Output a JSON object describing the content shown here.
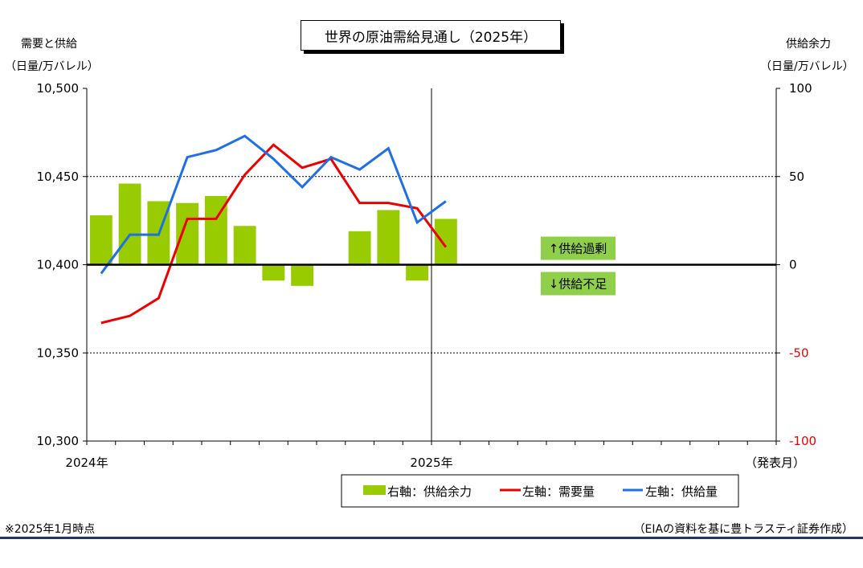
{
  "title": "世界の原油需給見通し（2025年）",
  "left_axis_caption": [
    "需要と供給",
    "（日量/万バレル）"
  ],
  "right_axis_caption": [
    "供給余力",
    "（日量/万バレル）"
  ],
  "footnote": "※2025年1月時点",
  "source": "（EIAの資料を基に豊トラスティ証券作成）",
  "colors": {
    "bar": "#99cc00",
    "demand": "#ee0000",
    "supply": "#1f6fe5",
    "callout": "#8fcf4a"
  },
  "chart_data": {
    "type": "bar+line",
    "x_tick_labels": [
      {
        "index": 1,
        "label": "2024年"
      },
      {
        "index": 13,
        "label": "2025年"
      }
    ],
    "x_axis_label": "（発表月）",
    "x_count": 24,
    "left_axis": {
      "range": [
        10300,
        10500
      ],
      "ticks": [
        "10,300",
        "10,350",
        "10,400",
        "10,450",
        "10,500"
      ]
    },
    "right_axis": {
      "range": [
        -100,
        100
      ],
      "ticks": [
        "-100",
        "-50",
        "0",
        "50",
        "100"
      ]
    },
    "series": [
      {
        "name": "右軸：供給余力",
        "type": "bar",
        "axis": "right",
        "values": [
          28,
          46,
          36,
          35,
          39,
          22,
          -9,
          -12,
          null,
          19,
          31,
          -9,
          26
        ]
      },
      {
        "name": "左軸：需要量",
        "type": "line",
        "axis": "left",
        "values": [
          10367,
          10371,
          10381,
          10426,
          10426,
          10451,
          10468,
          10455,
          10460,
          10435,
          10435,
          10432,
          10410
        ]
      },
      {
        "name": "左軸：供給量",
        "type": "line",
        "axis": "left",
        "values": [
          10395,
          10417,
          10417,
          10461,
          10465,
          10473,
          10460,
          10444,
          10461,
          10454,
          10466,
          10424,
          10436
        ]
      }
    ],
    "annotations": [
      "↑供給過剰",
      "↓供給不足"
    ],
    "grid": "horizontal dotted"
  }
}
